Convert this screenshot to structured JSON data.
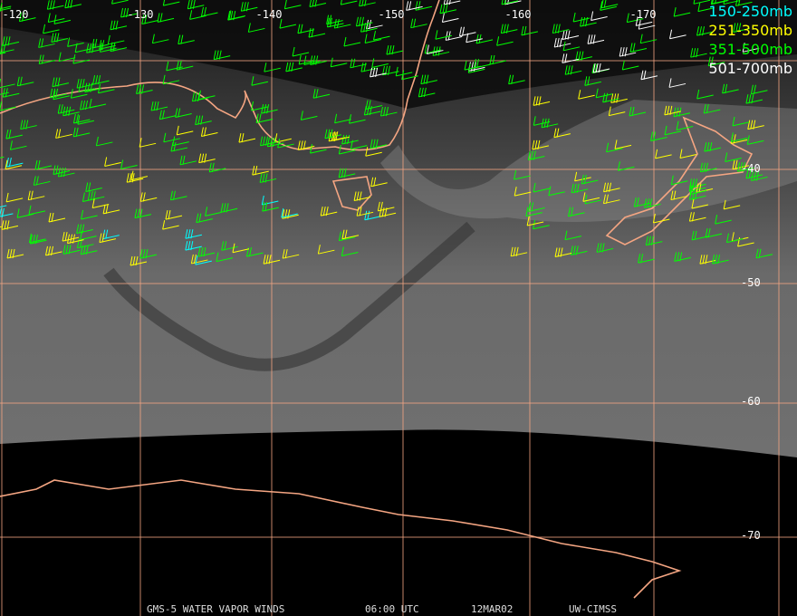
{
  "map": {
    "longitude_labels": [
      "-120",
      "-130",
      "-140",
      "-150",
      "-160",
      "-170"
    ],
    "latitude_labels": [
      "-40",
      "-50",
      "-60",
      "-70"
    ]
  },
  "legend": [
    {
      "label": "150-250mb",
      "color": "#00ffff"
    },
    {
      "label": "251-350mb",
      "color": "#ffff00"
    },
    {
      "label": "351-500mb",
      "color": "#00ff00"
    },
    {
      "label": "501-700mb",
      "color": "#ffffff"
    }
  ],
  "footer": [
    "GMS-5 WATER VAPOR WINDS",
    "06:00 UTC",
    "12MAR02",
    "UW-CIMSS"
  ]
}
